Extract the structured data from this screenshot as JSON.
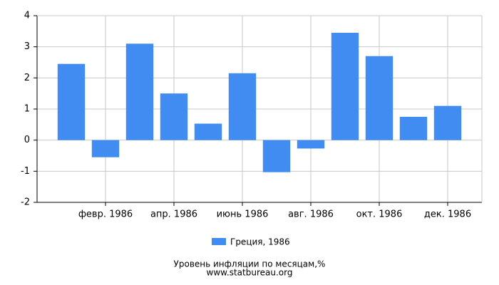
{
  "chart_data": {
    "type": "bar",
    "title": "Уровень инфляции по месяцам,%",
    "subtitle": "www.statbureau.org",
    "categories": [
      null,
      "февр. 1986",
      null,
      "апр. 1986",
      null,
      "июнь 1986",
      null,
      "авг. 1986",
      null,
      "окт. 1986",
      null,
      "дек. 1986"
    ],
    "series": [
      {
        "name": "Греция, 1986",
        "color": "#418cf0",
        "values": [
          2.45,
          -0.55,
          3.1,
          1.5,
          0.53,
          2.15,
          -1.03,
          -0.27,
          3.45,
          2.7,
          0.75,
          1.1
        ]
      }
    ],
    "ylim": [
      -2,
      4
    ],
    "yticks": [
      -2,
      -1,
      0,
      1,
      2,
      3,
      4
    ],
    "grid": true
  }
}
